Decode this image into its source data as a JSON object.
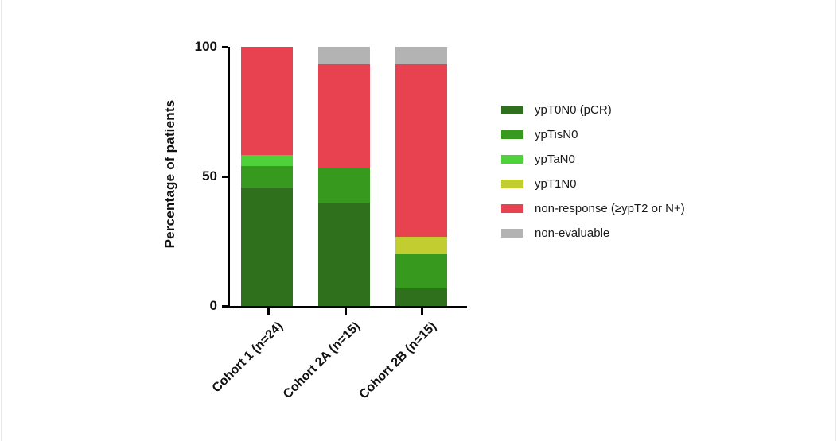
{
  "chart_data": {
    "type": "bar",
    "stacked": true,
    "orientation": "vertical",
    "title": "",
    "xlabel": "",
    "ylabel": "Percentage of patients",
    "ylim": [
      0,
      100
    ],
    "yticks": [
      0,
      50,
      100
    ],
    "grid": false,
    "legend_position": "right",
    "axis_color": "#000000",
    "text_color": "#111111",
    "categories": [
      "Cohort 1 (n=24)",
      "Cohort 2A (n=15)",
      "Cohort 2B (n=15)"
    ],
    "series": [
      {
        "name": "ypT0N0 (pCR)",
        "color": "#2e701c",
        "values": [
          45.8,
          40.0,
          6.7
        ]
      },
      {
        "name": "ypTisN0",
        "color": "#38991f",
        "values": [
          8.3,
          13.3,
          13.3
        ]
      },
      {
        "name": "ypTaN0",
        "color": "#4dd23a",
        "values": [
          4.2,
          0,
          0
        ]
      },
      {
        "name": "ypT1N0",
        "color": "#c2ce2f",
        "values": [
          0,
          0,
          6.7
        ]
      },
      {
        "name": "non-response (≥ypT2 or N+)",
        "color": "#e8414f",
        "values": [
          41.7,
          40.0,
          66.7
        ]
      },
      {
        "name": "non-evaluable",
        "color": "#b3b3b3",
        "values": [
          0,
          6.7,
          6.7
        ]
      }
    ]
  }
}
